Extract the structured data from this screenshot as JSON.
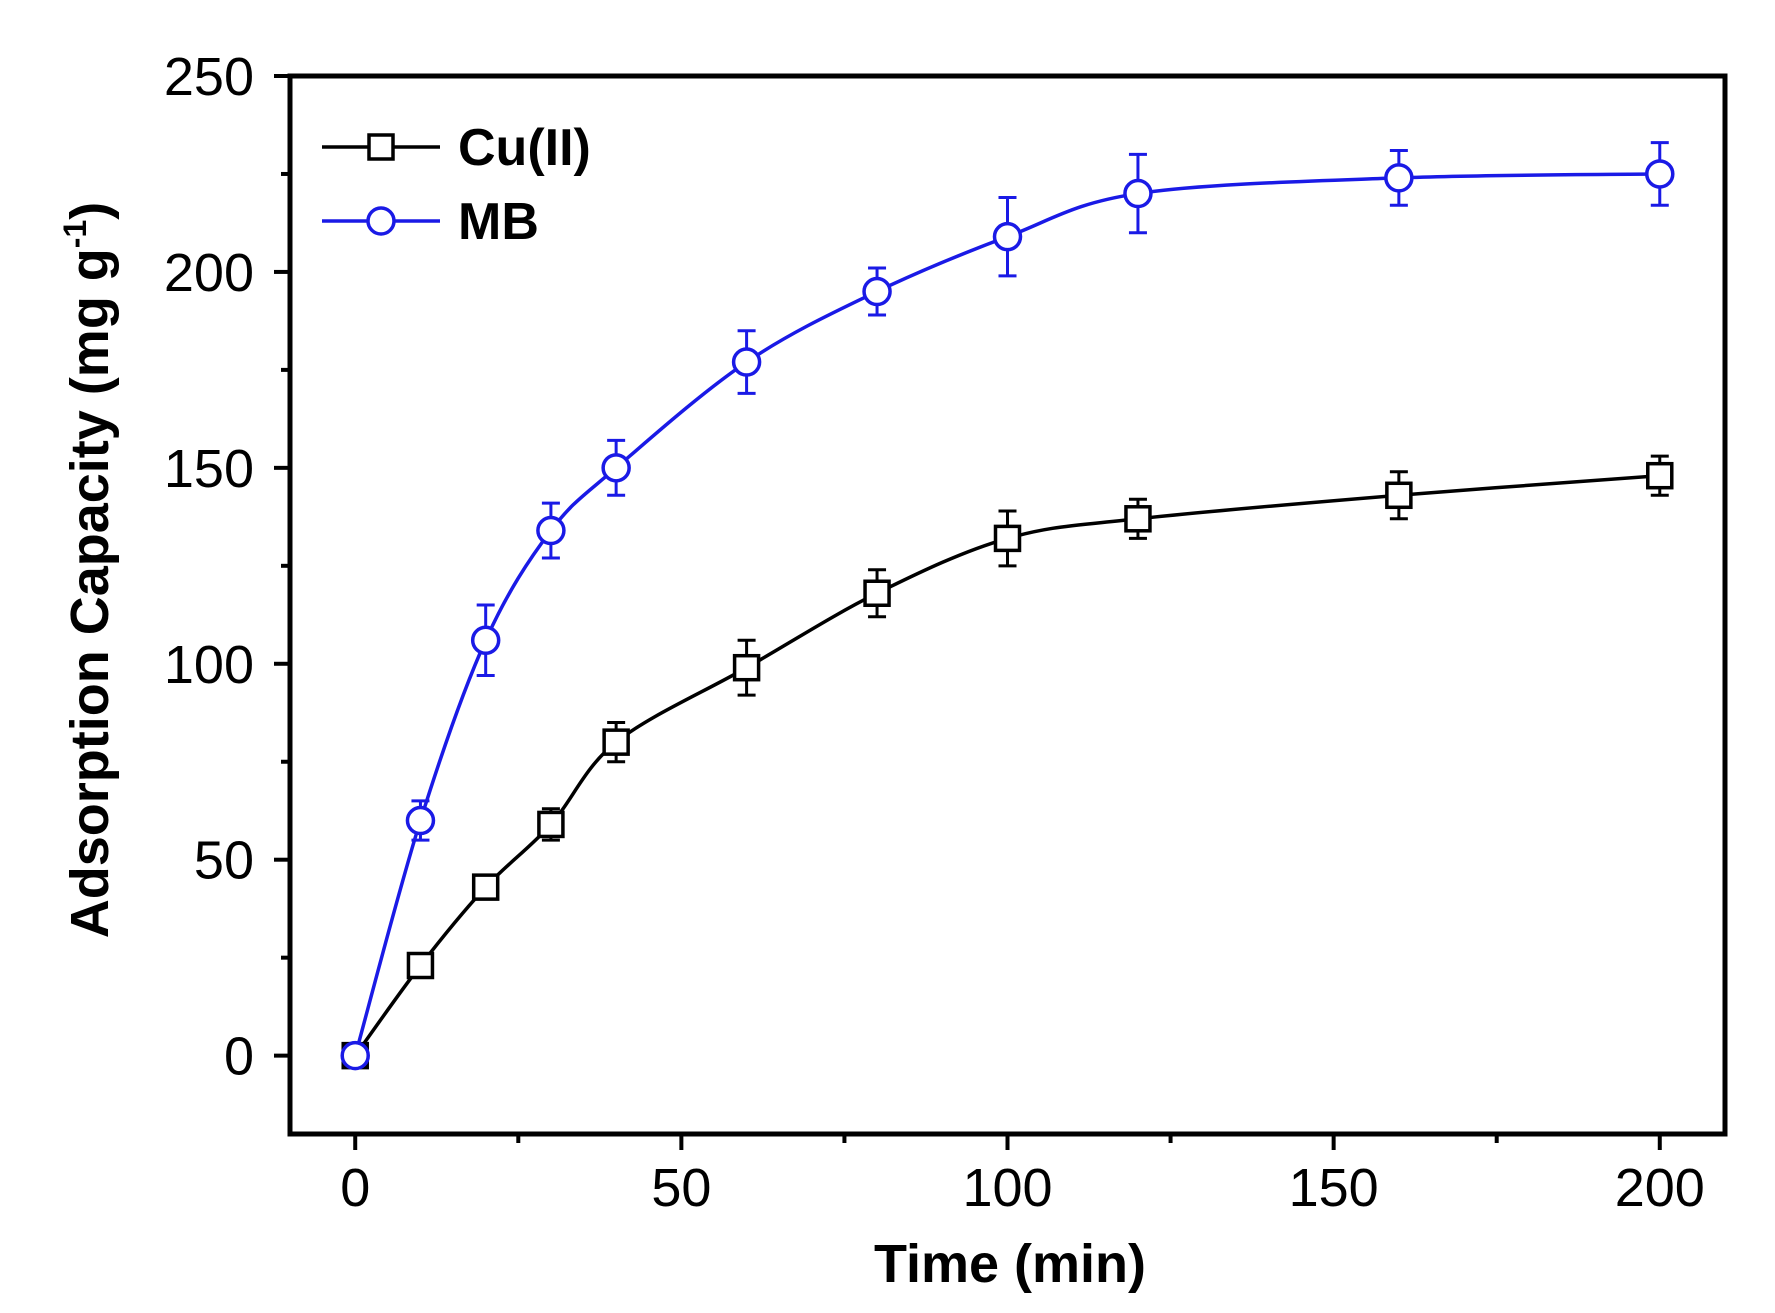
{
  "chart_data": {
    "type": "line",
    "title": "",
    "xlabel": "Time (min)",
    "ylabel": "Adsorption Capacity (mg g",
    "ylabel_superscript": "-1",
    "ylabel_close": ")",
    "xlim": [
      -10,
      210
    ],
    "ylim": [
      -20,
      250
    ],
    "xticks": [
      0,
      50,
      100,
      150,
      200
    ],
    "yticks": [
      0,
      50,
      100,
      150,
      200,
      250
    ],
    "grid": false,
    "legend_position": "top-left",
    "series": [
      {
        "name": "Cu(II)",
        "color": "#000000",
        "marker": "square",
        "x": [
          0,
          10,
          20,
          30,
          40,
          60,
          80,
          100,
          120,
          160,
          200
        ],
        "y": [
          0,
          23,
          43,
          59,
          80,
          99,
          118,
          132,
          137,
          143,
          148
        ],
        "err": [
          0,
          3,
          2,
          4,
          5,
          7,
          6,
          7,
          5,
          6,
          5
        ]
      },
      {
        "name": "MB",
        "color": "#1a1ae6",
        "marker": "circle",
        "x": [
          0,
          10,
          20,
          30,
          40,
          60,
          80,
          100,
          120,
          160,
          200
        ],
        "y": [
          0,
          60,
          106,
          134,
          150,
          177,
          195,
          209,
          220,
          224,
          225
        ],
        "err": [
          0,
          5,
          9,
          7,
          7,
          8,
          6,
          10,
          10,
          7,
          8
        ]
      }
    ]
  }
}
